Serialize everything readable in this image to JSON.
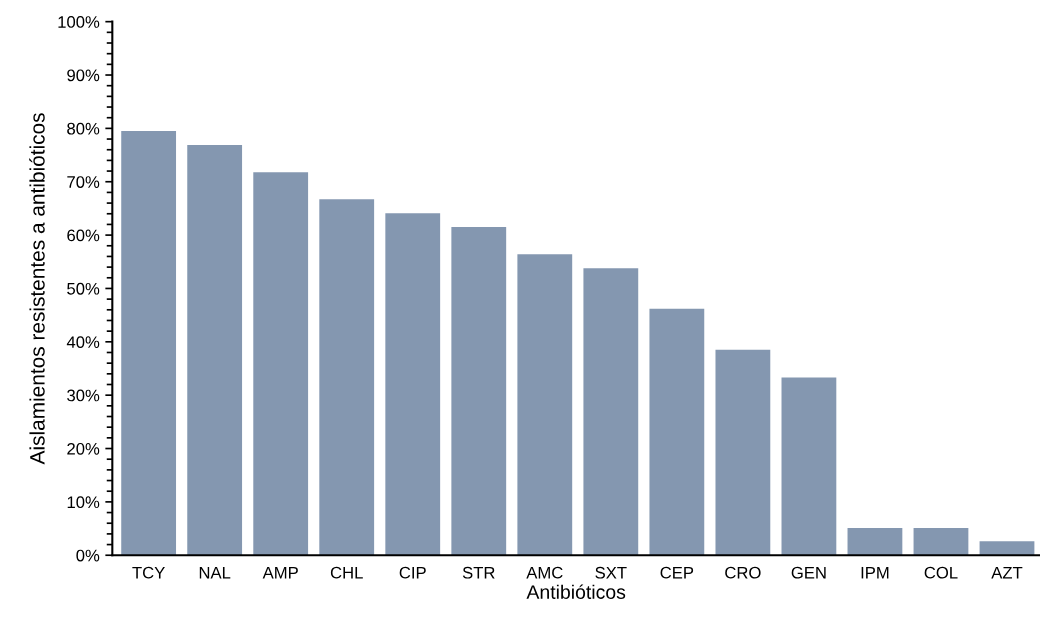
{
  "chart_data": {
    "type": "bar",
    "xlabel": "Antibióticos",
    "ylabel": "Aislamientos resistentes a antibióticos",
    "categories": [
      "TCY",
      "NAL",
      "AMP",
      "CHL",
      "CIP",
      "STR",
      "AMC",
      "SXT",
      "CEP",
      "CRO",
      "GEN",
      "IPM",
      "COL",
      "AZT"
    ],
    "values": [
      79.5,
      76.9,
      71.8,
      66.7,
      64.1,
      61.5,
      56.4,
      53.8,
      46.2,
      38.5,
      33.3,
      5.1,
      5.1,
      2.6
    ],
    "color": "#8497b0",
    "ylim": [
      0,
      100
    ],
    "yticks": [
      {
        "value": 0,
        "label": "0%"
      },
      {
        "value": 2,
        "label": null
      },
      {
        "value": 4,
        "label": null
      },
      {
        "value": 6,
        "label": null
      },
      {
        "value": 8,
        "label": null
      },
      {
        "value": 10,
        "label": "10%"
      },
      {
        "value": 12,
        "label": null
      },
      {
        "value": 14,
        "label": null
      },
      {
        "value": 16,
        "label": null
      },
      {
        "value": 18,
        "label": null
      },
      {
        "value": 20,
        "label": "20%"
      },
      {
        "value": 22,
        "label": null
      },
      {
        "value": 24,
        "label": null
      },
      {
        "value": 26,
        "label": null
      },
      {
        "value": 28,
        "label": null
      },
      {
        "value": 30,
        "label": "30%"
      },
      {
        "value": 32,
        "label": null
      },
      {
        "value": 34,
        "label": null
      },
      {
        "value": 36,
        "label": null
      },
      {
        "value": 38,
        "label": null
      },
      {
        "value": 40,
        "label": "40%"
      },
      {
        "value": 42,
        "label": null
      },
      {
        "value": 44,
        "label": null
      },
      {
        "value": 46,
        "label": null
      },
      {
        "value": 48,
        "label": null
      },
      {
        "value": 50,
        "label": "50%"
      },
      {
        "value": 52,
        "label": null
      },
      {
        "value": 54,
        "label": null
      },
      {
        "value": 56,
        "label": null
      },
      {
        "value": 58,
        "label": null
      },
      {
        "value": 60,
        "label": "60%"
      },
      {
        "value": 62,
        "label": null
      },
      {
        "value": 64,
        "label": null
      },
      {
        "value": 66,
        "label": null
      },
      {
        "value": 68,
        "label": null
      },
      {
        "value": 70,
        "label": "70%"
      },
      {
        "value": 72,
        "label": null
      },
      {
        "value": 74,
        "label": null
      },
      {
        "value": 76,
        "label": null
      },
      {
        "value": 78,
        "label": null
      },
      {
        "value": 80,
        "label": "80%"
      },
      {
        "value": 82,
        "label": null
      },
      {
        "value": 84,
        "label": null
      },
      {
        "value": 86,
        "label": null
      },
      {
        "value": 88,
        "label": null
      },
      {
        "value": 90,
        "label": "90%"
      },
      {
        "value": 92,
        "label": null
      },
      {
        "value": 94,
        "label": null
      },
      {
        "value": 96,
        "label": null
      },
      {
        "value": 98,
        "label": null
      },
      {
        "value": 100,
        "label": "100%"
      }
    ],
    "grid": false
  }
}
